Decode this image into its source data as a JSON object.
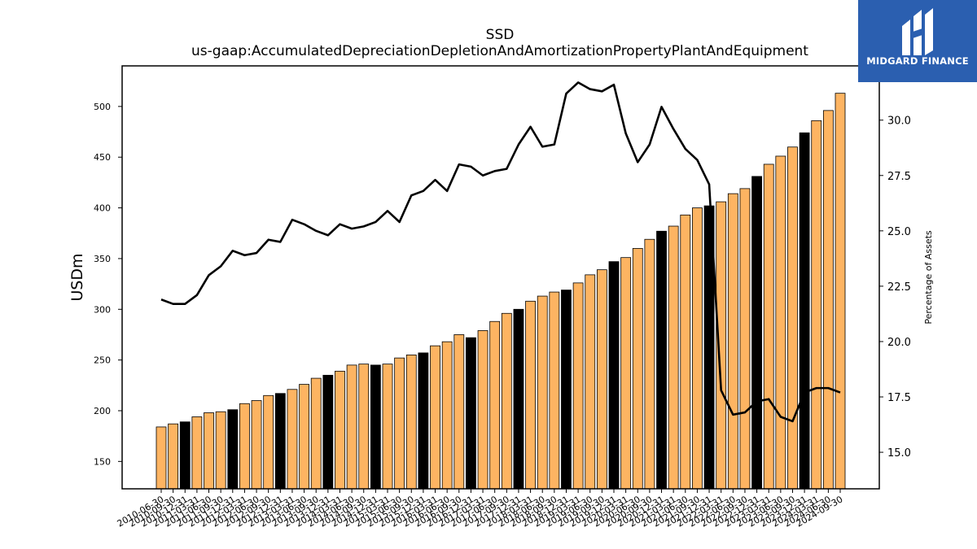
{
  "brand": {
    "name": "MIDGARD FINANCE"
  },
  "colors": {
    "bar_default": "#fdb462",
    "bar_highlight": "#000000",
    "line": "#000000",
    "logo_bg": "#2b5fb0"
  },
  "chart_data": {
    "type": "bar",
    "title": "SSD",
    "subtitle": "us-gaap:AccumulatedDepreciationDepletionAndAmortizationPropertyPlantAndEquipment",
    "ylabel": "USDm",
    "ylabel_right": "Percentage of Assets",
    "ylim": [
      123,
      540
    ],
    "ylim_right": [
      13.35,
      32.45
    ],
    "yticks": [
      150,
      200,
      250,
      300,
      350,
      400,
      450,
      500
    ],
    "yticks_right": [
      "15.0",
      "17.5",
      "20.0",
      "22.5",
      "25.0",
      "27.5",
      "30.0"
    ],
    "grid": false,
    "categories": [
      "2010-06-30",
      "2010-09-30",
      "2010-12-31",
      "2011-03-31",
      "2011-06-30",
      "2011-09-30",
      "2011-12-31",
      "2012-03-31",
      "2012-06-30",
      "2012-09-30",
      "2012-12-31",
      "2013-03-31",
      "2013-06-30",
      "2013-09-30",
      "2013-12-31",
      "2014-03-31",
      "2014-06-30",
      "2014-09-30",
      "2014-12-31",
      "2015-03-31",
      "2015-06-30",
      "2015-09-30",
      "2015-12-31",
      "2016-03-31",
      "2016-06-30",
      "2016-09-30",
      "2016-12-31",
      "2017-03-31",
      "2017-06-30",
      "2017-09-30",
      "2017-12-31",
      "2018-03-31",
      "2018-06-30",
      "2018-09-30",
      "2018-12-31",
      "2019-03-31",
      "2019-06-30",
      "2019-09-30",
      "2019-12-31",
      "2020-03-31",
      "2020-06-30",
      "2020-09-30",
      "2020-12-31",
      "2021-03-31",
      "2021-06-30",
      "2021-09-30",
      "2021-12-31",
      "2022-03-31",
      "2022-06-30",
      "2022-09-30",
      "2022-12-31",
      "2023-03-31",
      "2023-06-30",
      "2023-09-30",
      "2023-12-31",
      "2024-03-31",
      "2024-06-30",
      "2024-09-30"
    ],
    "series": [
      {
        "type": "bar",
        "values": [
          184,
          187,
          189,
          194,
          198,
          199,
          201,
          207,
          210,
          215,
          217,
          221,
          226,
          232,
          235,
          239,
          245,
          246,
          245,
          246,
          252,
          255,
          257,
          264,
          268,
          275,
          272,
          279,
          288,
          296,
          300,
          308,
          313,
          317,
          319,
          326,
          334,
          339,
          347,
          351,
          360,
          369,
          377,
          382,
          393,
          400,
          402,
          406,
          414,
          419,
          431,
          443,
          451,
          460,
          474,
          486,
          496,
          513
        ],
        "highlight": [
          2,
          6,
          10,
          14,
          18,
          22,
          26,
          30,
          34,
          38,
          42,
          46,
          50,
          54
        ]
      },
      {
        "type": "line",
        "axis": "right",
        "values": [
          21.9,
          21.7,
          21.7,
          22.1,
          23.0,
          23.4,
          24.1,
          23.9,
          24.0,
          24.6,
          24.5,
          25.5,
          25.3,
          25.0,
          24.8,
          25.3,
          25.1,
          25.2,
          25.4,
          25.9,
          25.4,
          26.6,
          26.8,
          27.3,
          26.8,
          28.0,
          27.9,
          27.5,
          27.7,
          27.8,
          28.9,
          29.7,
          28.8,
          28.9,
          31.2,
          31.7,
          31.4,
          31.3,
          31.6,
          29.4,
          28.1,
          28.9,
          30.6,
          29.6,
          28.7,
          28.2,
          27.1,
          17.8,
          16.7,
          16.8,
          17.3,
          17.4,
          16.6,
          16.4,
          17.7,
          17.9,
          17.9,
          17.7
        ]
      }
    ]
  }
}
